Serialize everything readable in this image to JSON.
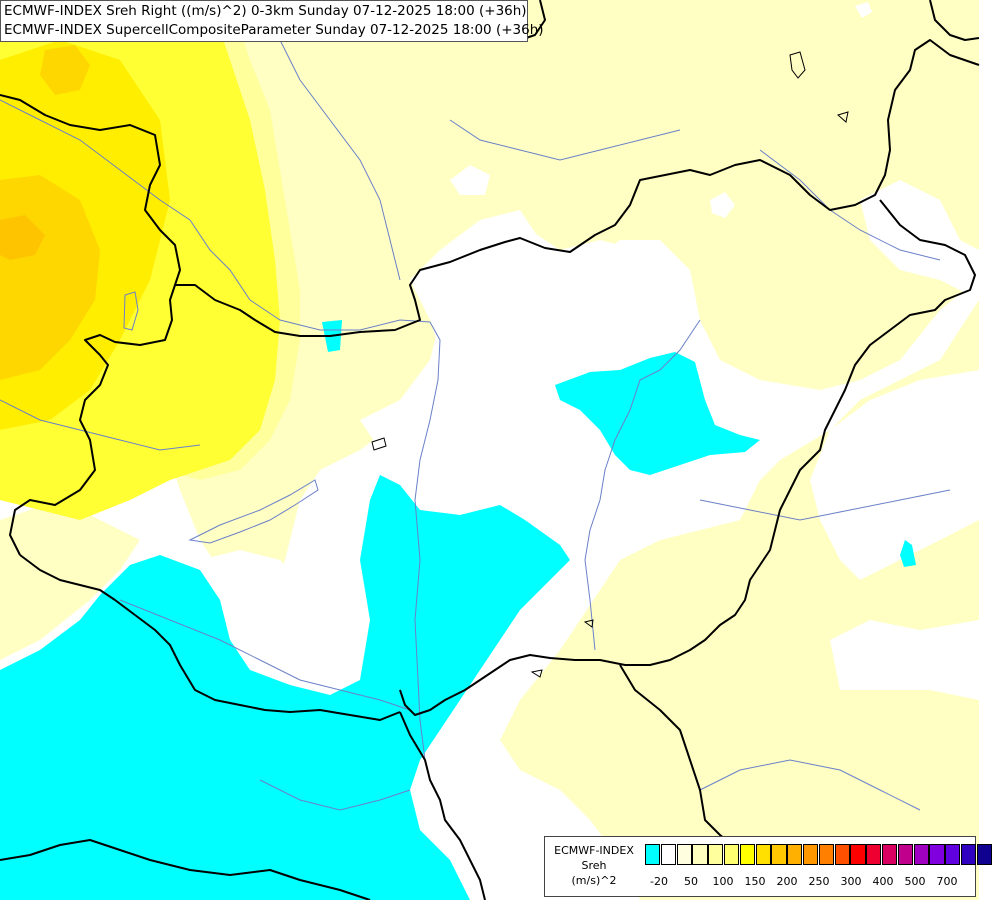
{
  "title": {
    "line1": "ECMWF-INDEX Sreh Right ((m/s)^2) 0-3km Sunday 07-12-2025 18:00 (+36h)",
    "line2": "ECMWF-INDEX SupercellCompositeParameter Sunday 07-12-2025 18:00 (+36h)"
  },
  "legend": {
    "model": "ECMWF-INDEX",
    "param": "Sreh",
    "unit": "(m/s)^2",
    "colors": [
      "#00ffff",
      "#ffffff",
      "#ffffe0",
      "#ffffc0",
      "#ffff9e",
      "#ffff70",
      "#ffff00",
      "#ffe000",
      "#ffc800",
      "#ffb000",
      "#ff9800",
      "#ff8000",
      "#ff5000",
      "#ff0000",
      "#ee0030",
      "#d80060",
      "#c0008c",
      "#a000c0",
      "#8000e0",
      "#6000e0",
      "#3000c0",
      "#100090"
    ],
    "ticks": [
      "-20",
      "50",
      "100",
      "150",
      "200",
      "250",
      "300",
      "400",
      "500",
      "700"
    ]
  },
  "map": {
    "colors": {
      "white": "#ffffff",
      "cyan": "#00ffff",
      "pale_yellow": "#ffffc4",
      "light_yellow": "#ffff9c",
      "yellow": "#ffff33",
      "bright_yellow": "#ffee00",
      "gold": "#ffd700",
      "orange": "#ffc400",
      "border": "#000000",
      "river": "#6a80c8"
    }
  }
}
